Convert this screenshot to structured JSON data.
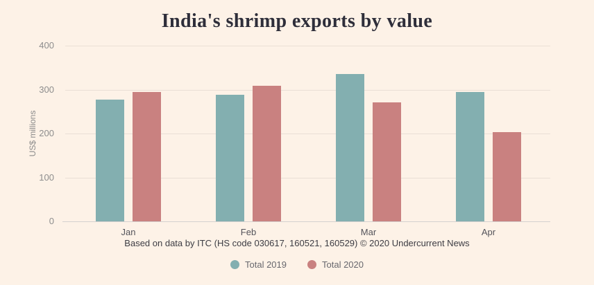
{
  "title": "India's shrimp exports by value",
  "footer": {
    "source": "Based on data by ITC (HS code 030617, 160521, 160529) © 2020 Undercurrent News"
  },
  "legend": [
    {
      "label": "Total 2019",
      "color": "#83afb0"
    },
    {
      "label": "Total 2020",
      "color": "#c98180"
    }
  ],
  "colors": {
    "background": "#fdf2e7",
    "series_2019": "#83afb0",
    "series_2020": "#c98180",
    "gridline": "#eadfd5",
    "baseline": "#d4d1cf",
    "title_text": "#2e2e3a"
  },
  "chart_data": {
    "type": "bar",
    "categories": [
      "Jan",
      "Feb",
      "Mar",
      "Apr"
    ],
    "series": [
      {
        "name": "Total 2019",
        "color": "#83afb0",
        "values": [
          277,
          288,
          335,
          295
        ]
      },
      {
        "name": "Total 2020",
        "color": "#c98180",
        "values": [
          295,
          309,
          271,
          204
        ]
      }
    ],
    "title": "India's shrimp exports by value",
    "xlabel": "",
    "ylabel": "US$ millions",
    "ylim": [
      0,
      400
    ],
    "yticks": [
      0,
      100,
      200,
      300,
      400
    ],
    "grid": true,
    "legend_position": "bottom"
  }
}
